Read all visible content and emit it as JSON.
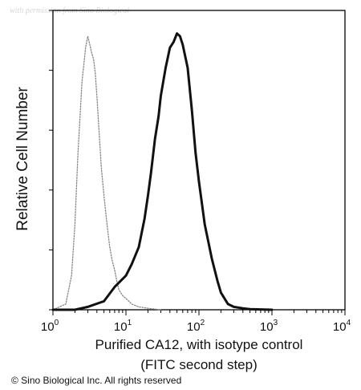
{
  "watermark": "with permission from Sino Biological",
  "copyright": "© Sino Biological Inc. All rights reserved",
  "chart_data": {
    "type": "line",
    "title": "",
    "ylabel": "Relative Cell Number",
    "xlabel_lines": [
      "Purified CA12, with isotype control",
      "(FITC second step)"
    ],
    "x_scale": "log",
    "xlim": [
      1,
      10000
    ],
    "ylim": [
      0,
      1
    ],
    "x_ticks": [
      {
        "base": "10",
        "exp": "0",
        "value": 1
      },
      {
        "base": "10",
        "exp": "1",
        "value": 10
      },
      {
        "base": "10",
        "exp": "2",
        "value": 100
      },
      {
        "base": "10",
        "exp": "3",
        "value": 1000
      },
      {
        "base": "10",
        "exp": "4",
        "value": 10000
      }
    ],
    "grid": false,
    "legend": "none",
    "series": [
      {
        "style": "dotted",
        "color": "#888888",
        "x": [
          1.0,
          1.5,
          1.8,
          2.0,
          2.2,
          2.5,
          2.8,
          3.0,
          3.2,
          3.4,
          3.6,
          3.8,
          4.0,
          4.3,
          4.6,
          5.0,
          5.5,
          6.0,
          6.5,
          7.0,
          7.5,
          8.0,
          9.0,
          10.0,
          12.0,
          15.0,
          20.0,
          30.0
        ],
        "y": [
          0.0,
          0.02,
          0.12,
          0.3,
          0.55,
          0.8,
          0.92,
          0.96,
          0.93,
          0.9,
          0.88,
          0.83,
          0.75,
          0.62,
          0.5,
          0.4,
          0.3,
          0.22,
          0.17,
          0.14,
          0.1,
          0.07,
          0.05,
          0.04,
          0.02,
          0.01,
          0.005,
          0.0
        ]
      },
      {
        "style": "solid",
        "color": "#111111",
        "x": [
          1.0,
          2.0,
          3.0,
          5.0,
          7.0,
          10.0,
          12.0,
          15.0,
          18.0,
          20.0,
          22.0,
          25.0,
          28.0,
          30.0,
          35.0,
          40.0,
          45.0,
          50.0,
          55.0,
          60.0,
          70.0,
          80.0,
          90.0,
          100.0,
          120.0,
          150.0,
          180.0,
          200.0,
          250.0,
          300.0,
          400.0,
          500.0,
          1000.0
        ],
        "y": [
          0.0,
          0.0,
          0.01,
          0.03,
          0.08,
          0.12,
          0.16,
          0.22,
          0.32,
          0.4,
          0.48,
          0.6,
          0.68,
          0.75,
          0.85,
          0.92,
          0.94,
          0.97,
          0.96,
          0.93,
          0.85,
          0.7,
          0.55,
          0.45,
          0.3,
          0.18,
          0.1,
          0.06,
          0.02,
          0.01,
          0.005,
          0.002,
          0.0
        ]
      }
    ]
  }
}
